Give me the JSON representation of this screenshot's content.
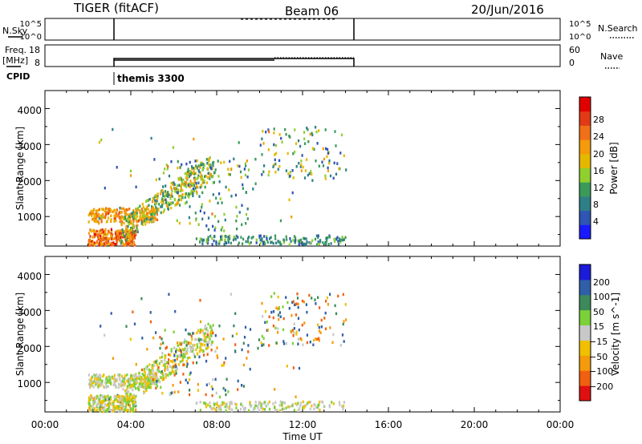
{
  "header": {
    "title": "TIGER (fitACF)",
    "beam": "Beam 06",
    "date": "20/Jun/2016"
  },
  "top_panels": {
    "nsky_label": "N.Sky",
    "nsearch_label": "N.Search",
    "nsky_ticks": [
      "10^5",
      "10^0"
    ],
    "freq_label": "Freq.",
    "freq_unit": "[MHz]",
    "freq_ticks": [
      "18",
      "8"
    ],
    "nave_label": "Nave",
    "nave_ticks": [
      "60",
      "0"
    ],
    "cpid_label": "CPID",
    "cpid_value": "themis 3300"
  },
  "chart_data": [
    {
      "type": "heatmap",
      "title": "",
      "xlabel": "Time UT",
      "ylabel": "Slant Range [km]",
      "xlim": [
        0,
        24
      ],
      "ylim": [
        180,
        4500
      ],
      "xtick_labels": [
        "00:00",
        "04:00",
        "08:00",
        "12:00",
        "16:00",
        "20:00",
        "00:00"
      ],
      "ytick_labels": [
        "1000",
        "2000",
        "3000",
        "4000"
      ],
      "colorbar": {
        "label": "Power [dB]",
        "ticks": [
          "4",
          "8",
          "12",
          "16",
          "20",
          "24",
          "28"
        ],
        "range": [
          0,
          32
        ],
        "colors": [
          "#1a1aff",
          "#2f55b5",
          "#2f7f86",
          "#3a9a5a",
          "#8fcf2e",
          "#e5b800",
          "#f59a0a",
          "#f07018",
          "#e23a16",
          "#e00000"
        ]
      },
      "data_coverage_ut": [
        2,
        14
      ],
      "features": [
        {
          "name": "strong near-range echo",
          "ut": [
            2,
            4
          ],
          "range_km": [
            200,
            600
          ],
          "value_db": 24
        },
        {
          "name": "1000 km band",
          "ut": [
            2,
            5
          ],
          "range_km": [
            900,
            1200
          ],
          "value_db": 20
        },
        {
          "name": "rising oblique echo",
          "ut": [
            4,
            7.5
          ],
          "range_km": [
            1200,
            2400
          ],
          "value_db": 16
        },
        {
          "name": "scattered far echo",
          "ut": [
            10,
            14
          ],
          "range_km": [
            2000,
            3500
          ],
          "value_db": 8
        }
      ]
    },
    {
      "type": "heatmap",
      "title": "",
      "xlabel": "Time UT",
      "ylabel": "Slant Range [km]",
      "xlim": [
        0,
        24
      ],
      "ylim": [
        180,
        4500
      ],
      "xtick_labels": [
        "00:00",
        "04:00",
        "08:00",
        "12:00",
        "16:00",
        "20:00",
        "00:00"
      ],
      "ytick_labels": [
        "1000",
        "2000",
        "3000",
        "4000"
      ],
      "colorbar": {
        "label": "Velocity [m s^-1]",
        "ticks": [
          "200",
          "100",
          "50",
          "15",
          "−15",
          "−50",
          "−100",
          "−200"
        ],
        "range": [
          -250,
          250
        ],
        "colors": [
          "#1b1bd8",
          "#2f5fa8",
          "#3c8a5a",
          "#7bd137",
          "#c8c8c8",
          "#f0c000",
          "#f59a0a",
          "#f06010",
          "#e01010"
        ]
      },
      "data_coverage_ut": [
        2,
        14
      ],
      "features": [
        {
          "name": "low-velocity main band",
          "ut": [
            2,
            7.5
          ],
          "range_km": [
            600,
            2400
          ],
          "value_ms": 0
        },
        {
          "name": "scattered far echo",
          "ut": [
            10,
            14
          ],
          "range_km": [
            2000,
            3500
          ],
          "value_ms": 50
        }
      ]
    }
  ]
}
